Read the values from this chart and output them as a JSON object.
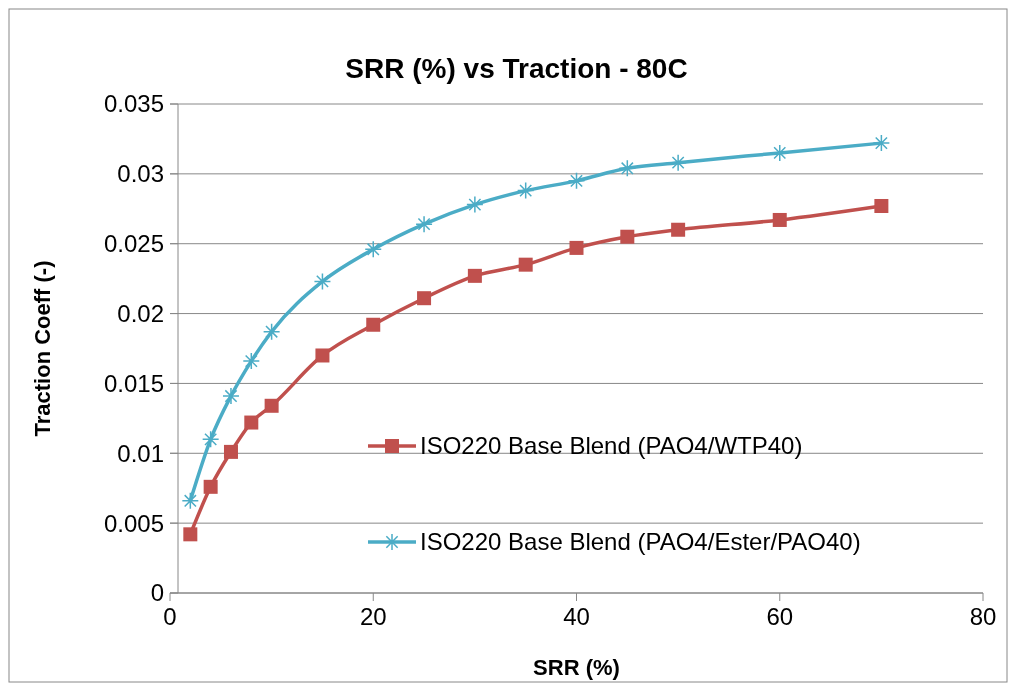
{
  "chart_data": {
    "type": "line",
    "title": "SRR (%) vs Traction - 80C",
    "xlabel": "SRR (%)",
    "ylabel": "Traction Coeff (-)",
    "xlim": [
      0,
      80
    ],
    "xticks": [
      0,
      20,
      40,
      60,
      80
    ],
    "ylim": [
      0,
      0.035
    ],
    "yticks": [
      0,
      0.005,
      0.01,
      0.015,
      0.02,
      0.025,
      0.03,
      0.035
    ],
    "grid": "y",
    "legend": "right",
    "x": [
      2,
      4,
      6,
      8,
      10,
      15,
      20,
      25,
      30,
      35,
      40,
      45,
      50,
      60,
      70
    ],
    "series": [
      {
        "name": "ISO220 Base Blend (PAO4/WTP40)",
        "color": "#c0504d",
        "marker": "square",
        "values": [
          0.0042,
          0.0076,
          0.0101,
          0.0122,
          0.0134,
          0.017,
          0.0192,
          0.0211,
          0.0227,
          0.0235,
          0.0247,
          0.0255,
          0.026,
          0.0267,
          0.0277
        ]
      },
      {
        "name": "ISO220 Base Blend (PAO4/Ester/PAO40)",
        "color": "#4bacc6",
        "marker": "cross",
        "values": [
          0.0066,
          0.011,
          0.0141,
          0.0166,
          0.0187,
          0.0223,
          0.0246,
          0.0264,
          0.0278,
          0.0288,
          0.0295,
          0.0304,
          0.0308,
          0.0315,
          0.0322
        ]
      }
    ]
  }
}
